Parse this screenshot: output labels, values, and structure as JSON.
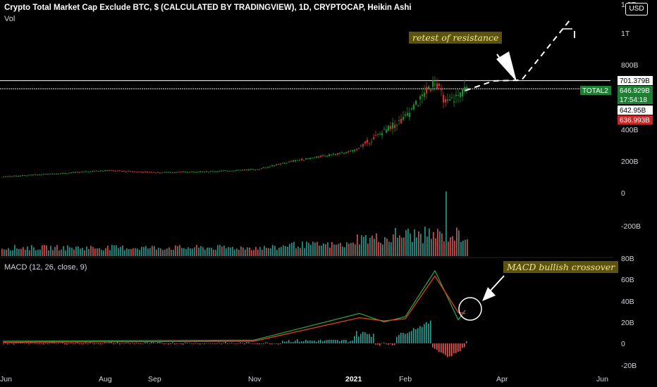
{
  "header": {
    "title": "Crypto Total Market Cap Exclude BTC, $ (CALCULATED BY TRADINGVIEW), 1D, CRYPTOCAP, Heikin Ashi",
    "volume_label": "Vol",
    "macd_label": "MACD (12, 26, close, 9)",
    "currency_button": "USD"
  },
  "annotations": {
    "resistance": "retest of resistance",
    "macd": "MACD bullish crossover"
  },
  "colors": {
    "background": "#000000",
    "bull": "#26a69a",
    "bull_candle": "#1e8c2c",
    "bear": "#ef5350",
    "bear_candle": "#d32f2f",
    "macd_line": "#2e9e3f",
    "signal_line": "#e0451f",
    "annotation_bg": "#5c5310",
    "annotation_text": "#f0e68c"
  },
  "chart_data": [
    {
      "type": "candlestick",
      "title": "Crypto Total Market Cap Exclude BTC, $ (CALCULATED BY TRADINGVIEW), 1D, CRYPTOCAP, Heikin Ashi",
      "x_ticks": [
        "Jun",
        "Aug",
        "Sep",
        "Nov",
        "2021",
        "Feb",
        "Apr",
        "Jun"
      ],
      "y_ticks": [
        "1.2T",
        "1T",
        "800B",
        "400B",
        "200B",
        "0"
      ],
      "series_points": [
        {
          "x": "Jun",
          "y": 100
        },
        {
          "x": "Jul",
          "y": 125
        },
        {
          "x": "Aug",
          "y": 142
        },
        {
          "x": "Sep",
          "y": 128
        },
        {
          "x": "Oct",
          "y": 135
        },
        {
          "x": "Nov",
          "y": 150
        },
        {
          "x": "Dec",
          "y": 205
        },
        {
          "x": "2021",
          "y": 265
        },
        {
          "x": "Feb",
          "y": 475
        },
        {
          "x": "peak",
          "y": 705
        },
        {
          "x": "dip",
          "y": 555
        },
        {
          "x": "last",
          "y": 645
        }
      ],
      "horizontal_lines": [
        701.379,
        642.95
      ],
      "price_labels": [
        {
          "label": "701.379B",
          "style": "white"
        },
        {
          "label": "TOTAL2",
          "style": "green"
        },
        {
          "label": "646.929B",
          "style": "green"
        },
        {
          "label": "17:54:18",
          "style": "green"
        },
        {
          "label": "642.95B",
          "style": "white"
        },
        {
          "label": "636.993B",
          "style": "red"
        }
      ],
      "projection": "dashed line rising from last price through retest of resistance to around 1.1T"
    },
    {
      "type": "bar",
      "title": "Vol",
      "description": "daily volume bars, rising sharply from January 2021 with a spike in mid-February",
      "y_ticks": [
        "-200B"
      ]
    },
    {
      "type": "line",
      "title": "MACD (12, 26, close, 9)",
      "y_ticks": [
        "80B",
        "60B",
        "40B",
        "20B",
        "0",
        "-20B"
      ],
      "series": [
        {
          "name": "MACD",
          "points": [
            {
              "x": "Jun",
              "y": 2
            },
            {
              "x": "Nov",
              "y": 3
            },
            {
              "x": "2021",
              "y": 28
            },
            {
              "x": "Jan-mid",
              "y": 20
            },
            {
              "x": "Feb",
              "y": 25
            },
            {
              "x": "peak",
              "y": 68
            },
            {
              "x": "low",
              "y": 22
            },
            {
              "x": "last",
              "y": 31
            }
          ]
        },
        {
          "name": "Signal",
          "points": [
            {
              "x": "Jun",
              "y": 1
            },
            {
              "x": "Nov",
              "y": 2
            },
            {
              "x": "2021",
              "y": 24
            },
            {
              "x": "Jan-mid",
              "y": 21
            },
            {
              "x": "Feb",
              "y": 23
            },
            {
              "x": "peak",
              "y": 63
            },
            {
              "x": "low",
              "y": 29
            },
            {
              "x": "last",
              "y": 28
            }
          ]
        }
      ],
      "histogram_note": "positive bars peaking in early February, negative bars late February"
    }
  ]
}
